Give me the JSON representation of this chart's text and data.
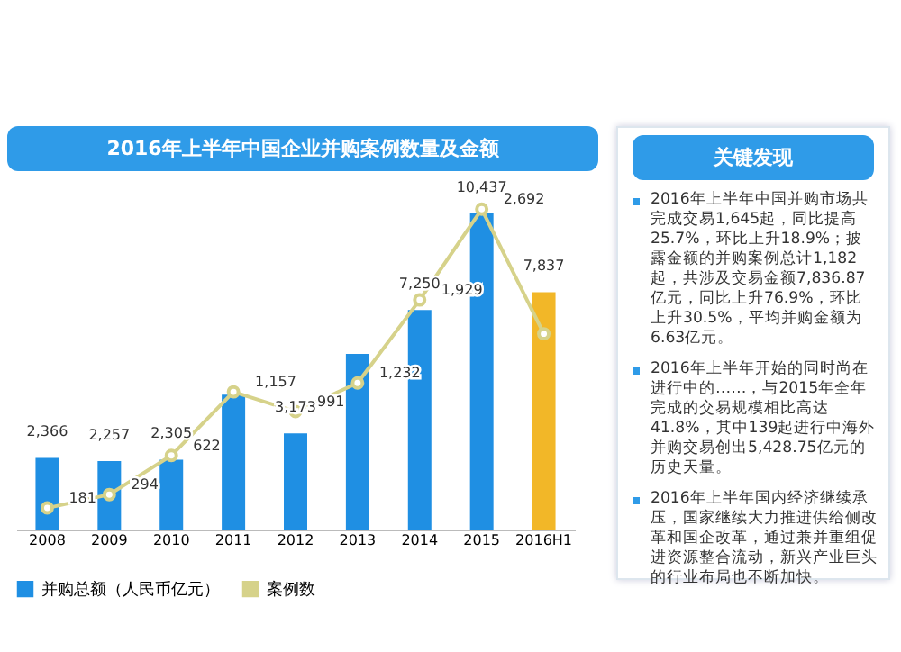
{
  "chart_data": [
    {
      "type": "bar",
      "title": "2016年上半年中国企业并购案例数量及金额",
      "categories": [
        "2008",
        "2009",
        "2010",
        "2011",
        "2012",
        "2013",
        "2014",
        "2015",
        "2016H1"
      ],
      "series": [
        {
          "name": "并购总额（人民币亿元）",
          "type": "bar",
          "color": "#1f8fe3",
          "colors": [
            "#1f8fe3",
            "#1f8fe3",
            "#1f8fe3",
            "#1f8fe3",
            "#1f8fe3",
            "#1f8fe3",
            "#1f8fe3",
            "#1f8fe3",
            "#f2b728"
          ],
          "values": [
            2366,
            2257,
            2305,
            4450,
            3173,
            5800,
            7250,
            10437,
            7837
          ],
          "value_labels": [
            "2,366",
            "2,257",
            "2,305",
            null,
            "3,173",
            null,
            "7,250",
            "10,437",
            "7,837"
          ]
        },
        {
          "name": "案例数",
          "type": "line",
          "axis": "y2",
          "color": "#d6d28a",
          "values": [
            181,
            294,
            622,
            1157,
            991,
            1232,
            1929,
            2692,
            1645
          ],
          "value_labels": [
            "181",
            "294",
            "622",
            "1,157",
            "991",
            "1,232",
            "1,929",
            "2,692",
            null
          ]
        }
      ],
      "legend": "bottom",
      "marker": "circle",
      "tick_labels": "x"
    },
    {
      "type": "other",
      "title": "关键发现",
      "annotations": [
        "2016年上半年中国并购市场共完成交易1,645起，同比提高25.7%，环比上升18.9%；披露金额的并购案例总计1,182起，共涉及交易金额7,836.87亿元，同比上升76.9%，环比上升30.5%，平均并购金额为6.63亿元。",
        "2016年上半年开始的同时尚在进行中的……，与2015年全年完成的交易规模相比高达41.8%，其中139起进行中海外并购交易创出5,428.75亿元的历史天量。",
        "2016年上半年国内经济继续承压，国家继续大力推进供给侧改革和国企改革，通过兼并重组促进资源整合流动，新兴产业巨头的行业布局也不断加快。"
      ]
    }
  ]
}
